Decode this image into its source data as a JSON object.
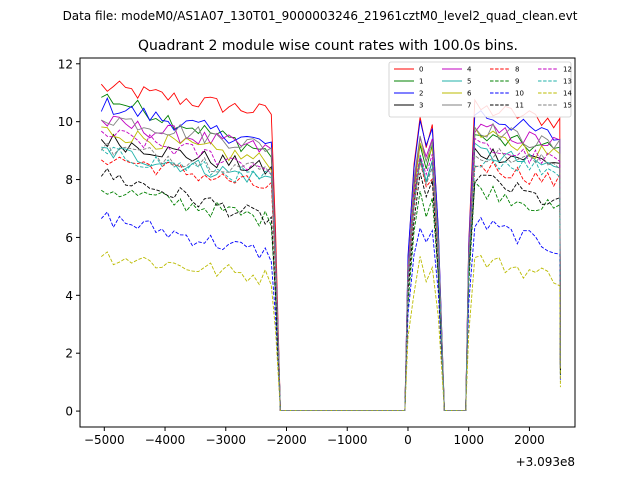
{
  "chart_data": {
    "type": "line",
    "suptitle": "Data file: modeM0/AS1A07_130T01_9000003246_21961cztM0_level2_quad_clean.evt",
    "title": "Quadrant 2 module wise count rates with 100.0s bins.",
    "xlabel": "",
    "ylabel": "",
    "x_offset_label": "+3.093e8",
    "xlim": [
      -5400,
      2750
    ],
    "ylim": [
      -0.55,
      12.2
    ],
    "xticks": [
      -5000,
      -4000,
      -3000,
      -2000,
      -1000,
      0,
      1000,
      2000
    ],
    "xtick_labels": [
      "−5000",
      "−4000",
      "−3000",
      "−2000",
      "−1000",
      "0",
      "1000",
      "2000"
    ],
    "yticks": [
      0,
      2,
      4,
      6,
      8,
      10,
      12
    ],
    "ytick_labels": [
      "0",
      "2",
      "4",
      "6",
      "8",
      "10",
      "12"
    ],
    "grid": false,
    "legend_position": "top-right",
    "gti_segments": [
      [
        -5050,
        -2250
      ],
      [
        0,
        550
      ],
      [
        1000,
        2450
      ]
    ],
    "bin_width": 100,
    "series": [
      {
        "name": "0",
        "color": "#ff0000",
        "dash": "solid",
        "level_start": 11.2,
        "level_end": 10.3,
        "level_mid": 10.5,
        "level_late": 10.0
      },
      {
        "name": "1",
        "color": "#008000",
        "dash": "solid",
        "level_start": 10.9,
        "level_end": 8.9,
        "level_mid": 9.5,
        "level_late": 9.0
      },
      {
        "name": "2",
        "color": "#0000ff",
        "dash": "solid",
        "level_start": 10.6,
        "level_end": 9.2,
        "level_mid": 10.4,
        "level_late": 9.4
      },
      {
        "name": "3",
        "color": "#000000",
        "dash": "solid",
        "level_start": 9.4,
        "level_end": 8.3,
        "level_mid": 9.0,
        "level_late": 8.6
      },
      {
        "name": "4",
        "color": "#c000c0",
        "dash": "solid",
        "level_start": 10.0,
        "level_end": 9.0,
        "level_mid": 9.8,
        "level_late": 9.2
      },
      {
        "name": "5",
        "color": "#20b2aa",
        "dash": "solid",
        "level_start": 9.0,
        "level_end": 8.0,
        "level_mid": 9.0,
        "level_late": 8.4
      },
      {
        "name": "6",
        "color": "#bbbb00",
        "dash": "solid",
        "level_start": 9.7,
        "level_end": 8.6,
        "level_mid": 9.6,
        "level_late": 8.8
      },
      {
        "name": "7",
        "color": "#808080",
        "dash": "solid",
        "level_start": 10.2,
        "level_end": 9.1,
        "level_mid": 9.9,
        "level_late": 9.1
      },
      {
        "name": "8",
        "color": "#ff0000",
        "dash": "dashed",
        "level_start": 8.8,
        "level_end": 7.7,
        "level_mid": 8.6,
        "level_late": 7.9
      },
      {
        "name": "9",
        "color": "#008000",
        "dash": "dashed",
        "level_start": 7.7,
        "level_end": 6.6,
        "level_mid": 7.8,
        "level_late": 6.9
      },
      {
        "name": "10",
        "color": "#0000ff",
        "dash": "dashed",
        "level_start": 6.7,
        "level_end": 5.4,
        "level_mid": 6.6,
        "level_late": 5.6
      },
      {
        "name": "11",
        "color": "#000000",
        "dash": "dashed",
        "level_start": 8.2,
        "level_end": 6.6,
        "level_mid": 8.2,
        "level_late": 7.1
      },
      {
        "name": "12",
        "color": "#c000c0",
        "dash": "dashed",
        "level_start": 9.6,
        "level_end": 8.4,
        "level_mid": 9.2,
        "level_late": 8.6
      },
      {
        "name": "13",
        "color": "#20b2aa",
        "dash": "dashed",
        "level_start": 8.9,
        "level_end": 8.0,
        "level_mid": 8.8,
        "level_late": 8.3
      },
      {
        "name": "14",
        "color": "#bbbb00",
        "dash": "dashed",
        "level_start": 5.4,
        "level_end": 4.6,
        "level_mid": 5.3,
        "level_late": 4.6
      },
      {
        "name": "15",
        "color": "#808080",
        "dash": "dashed",
        "level_start": 9.1,
        "level_end": 8.3,
        "level_mid": 9.0,
        "level_late": 8.5
      }
    ]
  }
}
